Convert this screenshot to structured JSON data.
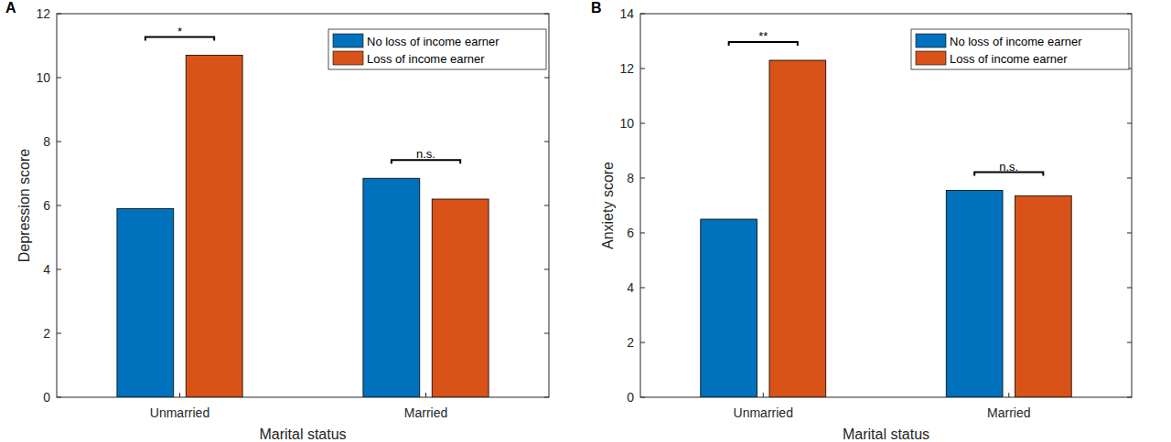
{
  "chart_data": [
    {
      "type": "bar",
      "title": "A",
      "x_label": "Marital status",
      "y_label": "Depression score",
      "categories": [
        "Unmarried",
        "Married"
      ],
      "series": [
        {
          "name": "No loss of income earner",
          "color": "#0072bd",
          "values": [
            5.9,
            6.85
          ]
        },
        {
          "name": "Loss of income earner",
          "color": "#d95319",
          "values": [
            10.7,
            6.2
          ]
        }
      ],
      "annotations": [
        "*",
        "n.s."
      ],
      "ylim": [
        0,
        12
      ],
      "yticks": [
        0,
        2,
        4,
        6,
        8,
        10,
        12
      ],
      "grid": false,
      "legend": "northeast"
    },
    {
      "type": "bar",
      "title": "B",
      "x_label": "Marital status",
      "y_label": "Anxiety score",
      "categories": [
        "Unmarried",
        "Married"
      ],
      "series": [
        {
          "name": "No loss of income earner",
          "color": "#0072bd",
          "values": [
            6.5,
            7.55
          ]
        },
        {
          "name": "Loss of income earner",
          "color": "#d95319",
          "values": [
            12.3,
            7.35
          ]
        }
      ],
      "annotations": [
        "**",
        "n.s."
      ],
      "ylim": [
        0,
        14
      ],
      "yticks": [
        0,
        2,
        4,
        6,
        8,
        10,
        12,
        14
      ],
      "grid": false,
      "legend": "northeast"
    }
  ]
}
